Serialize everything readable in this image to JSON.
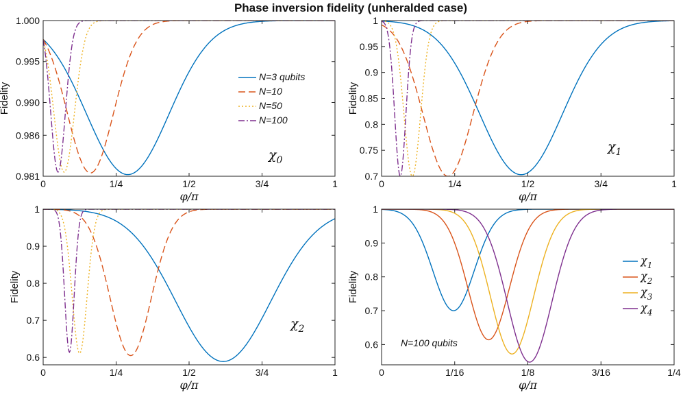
{
  "figure_title": "Phase inversion fidelity (unheralded case)",
  "colors": {
    "blue": "#0072BD",
    "orange": "#D95319",
    "yellow": "#EDB120",
    "purple": "#7E2F8E"
  },
  "chart_data": [
    {
      "type": "line",
      "title": "",
      "xlabel": "φ/π",
      "ylabel": "Fidelity",
      "xlim": [
        0,
        1
      ],
      "ylim": [
        0.981,
        1.0
      ],
      "xticks": [
        0,
        0.25,
        0.5,
        0.75,
        1
      ],
      "xtick_labels": [
        "0",
        "1/4",
        "1/2",
        "3/4",
        "1"
      ],
      "yticks": [
        0.981,
        0.986,
        0.99,
        0.995,
        1.0
      ],
      "ytick_labels": [
        "0.981",
        "0.986",
        "0.990",
        "0.995",
        "1.000"
      ],
      "annotation": {
        "symbol": "χ",
        "sub": "0"
      },
      "legend": "right",
      "series": [
        {
          "name": "N=3 qubits",
          "color": "blue",
          "dash": "solid",
          "min_x": 0.29,
          "min_y": 0.9812,
          "width": 0.2
        },
        {
          "name": "N=10",
          "color": "orange",
          "dash": "dashed",
          "min_x": 0.162,
          "min_y": 0.9814,
          "width": 0.112
        },
        {
          "name": "N=50",
          "color": "yellow",
          "dash": "dotted",
          "min_x": 0.072,
          "min_y": 0.9815,
          "width": 0.05
        },
        {
          "name": "N=100",
          "color": "purple",
          "dash": "dashdot",
          "min_x": 0.051,
          "min_y": 0.9815,
          "width": 0.0355
        }
      ]
    },
    {
      "type": "line",
      "title": "",
      "xlabel": "φ/π",
      "ylabel": "Fidelity",
      "xlim": [
        0,
        1
      ],
      "ylim": [
        0.7,
        1.0
      ],
      "xticks": [
        0,
        0.25,
        0.5,
        0.75,
        1
      ],
      "xtick_labels": [
        "0",
        "1/4",
        "1/2",
        "3/4",
        "1"
      ],
      "yticks": [
        0.7,
        0.75,
        0.8,
        0.85,
        0.9,
        0.95,
        1.0
      ],
      "ytick_labels": [
        "0.7",
        "0.75",
        "0.8",
        "0.85",
        "0.9",
        "0.95",
        "1"
      ],
      "annotation": {
        "symbol": "χ",
        "sub": "1"
      },
      "series": [
        {
          "name": "N=3 qubits",
          "color": "blue",
          "dash": "solid",
          "min_x": 0.477,
          "min_y": 0.703,
          "width": 0.2
        },
        {
          "name": "N=10",
          "color": "orange",
          "dash": "dashed",
          "min_x": 0.227,
          "min_y": 0.7,
          "width": 0.12
        },
        {
          "name": "N=50",
          "color": "yellow",
          "dash": "dotted",
          "min_x": 0.105,
          "min_y": 0.7,
          "width": 0.04
        },
        {
          "name": "N=100",
          "color": "purple",
          "dash": "dashdot",
          "min_x": 0.064,
          "min_y": 0.7,
          "width": 0.027
        }
      ]
    },
    {
      "type": "line",
      "title": "",
      "xlabel": "φ/π",
      "ylabel": "Fidelity",
      "xlim": [
        0,
        1
      ],
      "ylim": [
        0.58,
        1.0
      ],
      "xticks": [
        0,
        0.25,
        0.5,
        0.75,
        1
      ],
      "xtick_labels": [
        "0",
        "1/4",
        "1/2",
        "3/4",
        "1"
      ],
      "yticks": [
        0.6,
        0.7,
        0.8,
        0.9,
        1.0
      ],
      "ytick_labels": [
        "0.6",
        "0.7",
        "0.8",
        "0.9",
        "1"
      ],
      "annotation": {
        "symbol": "χ",
        "sub": "2"
      },
      "series": [
        {
          "name": "N=3 qubits",
          "color": "blue",
          "dash": "solid",
          "min_x": 0.617,
          "min_y": 0.589,
          "width": 0.23
        },
        {
          "name": "N=10",
          "color": "orange",
          "dash": "dashed",
          "min_x": 0.3,
          "min_y": 0.605,
          "width": 0.1
        },
        {
          "name": "N=50",
          "color": "yellow",
          "dash": "dotted",
          "min_x": 0.125,
          "min_y": 0.611,
          "width": 0.036
        },
        {
          "name": "N=100",
          "color": "purple",
          "dash": "dashdot",
          "min_x": 0.09,
          "min_y": 0.614,
          "width": 0.023
        }
      ]
    },
    {
      "type": "line",
      "title": "",
      "xlabel": "φ/π",
      "ylabel": "Fidelity",
      "xlim": [
        0,
        0.25
      ],
      "ylim": [
        0.54,
        1.0
      ],
      "xticks": [
        0,
        0.0625,
        0.125,
        0.1875,
        0.25
      ],
      "xtick_labels": [
        "0",
        "1/16",
        "1/8",
        "3/16",
        "1/4"
      ],
      "yticks": [
        0.6,
        0.7,
        0.8,
        0.9,
        1.0
      ],
      "ytick_labels": [
        "0.6",
        "0.7",
        "0.8",
        "0.9",
        "1"
      ],
      "note": "N=100 qubits",
      "legend": "right",
      "series": [
        {
          "name": "χ",
          "sub": "1",
          "color": "blue",
          "dash": "solid",
          "min_x": 0.0615,
          "min_y": 0.7,
          "width": 0.025
        },
        {
          "name": "χ",
          "sub": "2",
          "color": "orange",
          "dash": "solid",
          "min_x": 0.0915,
          "min_y": 0.614,
          "width": 0.025
        },
        {
          "name": "χ",
          "sub": "3",
          "color": "yellow",
          "dash": "solid",
          "min_x": 0.1115,
          "min_y": 0.572,
          "width": 0.026
        },
        {
          "name": "χ",
          "sub": "4",
          "color": "purple",
          "dash": "solid",
          "min_x": 0.1265,
          "min_y": 0.548,
          "width": 0.027
        }
      ]
    }
  ]
}
